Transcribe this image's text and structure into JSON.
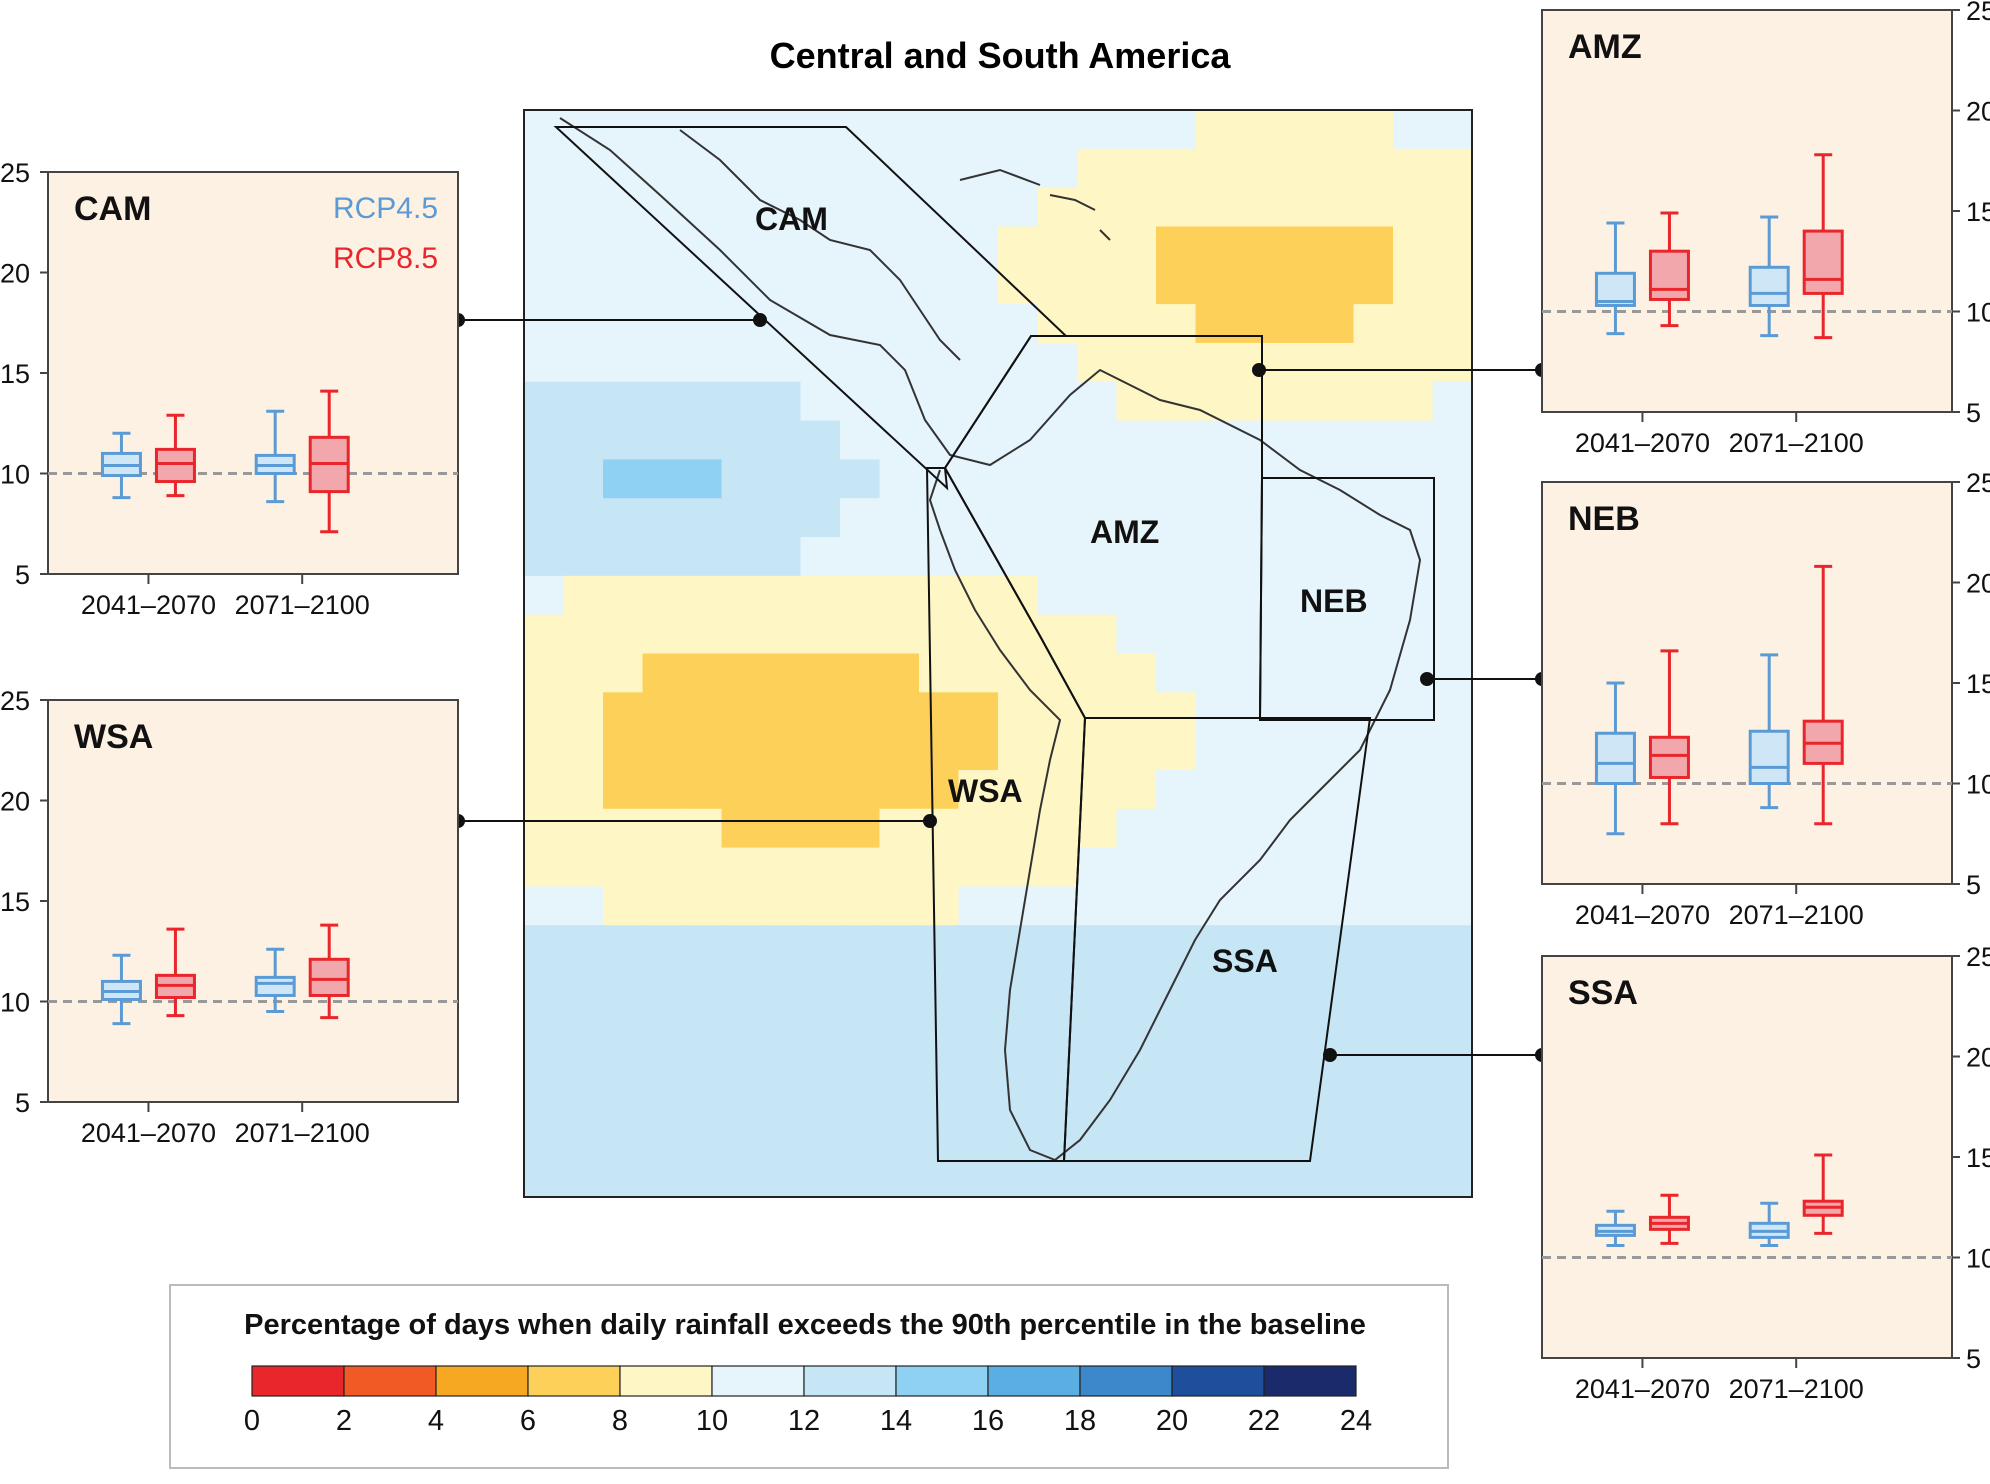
{
  "title": "Central and South America",
  "legend_title": "Percentage of days when daily rainfall exceeds the 90th percentile in the baseline",
  "map_labels": [
    "CAM",
    "AMZ",
    "NEB",
    "WSA",
    "SSA"
  ],
  "colors": {
    "rcp45": "#5b9bd5",
    "rcp45_fill": "#cfe6f7",
    "rcp85": "#e8262b",
    "rcp85_fill": "#f2a7ad",
    "panel_bg": "#fdf1e3",
    "baseline": "#999999"
  },
  "colorbar": {
    "ticks": [
      "0",
      "2",
      "4",
      "6",
      "8",
      "10",
      "12",
      "14",
      "16",
      "18",
      "20",
      "22",
      "24"
    ],
    "colors": [
      "#e8262b",
      "#f15a24",
      "#f7a823",
      "#fdd159",
      "#fef6c4",
      "#e6f4fb",
      "#c6e5f5",
      "#8fd1f2",
      "#5aaee2",
      "#3d87cb",
      "#1f4e9c",
      "#1b2a6b"
    ]
  },
  "chart_data": [
    {
      "type": "box",
      "region": "CAM",
      "categories": [
        "2041–2070",
        "2071–2100"
      ],
      "ylim": [
        5,
        25
      ],
      "yticks": [
        "5",
        "10",
        "15",
        "20",
        "25"
      ],
      "baseline": 10,
      "legend": [
        "RCP4.5",
        "RCP8.5"
      ],
      "series": [
        {
          "name": "RCP4.5",
          "boxes": [
            {
              "min": 8.8,
              "q1": 9.9,
              "median": 10.4,
              "q3": 11.0,
              "max": 12.0
            },
            {
              "min": 8.6,
              "q1": 10.0,
              "median": 10.4,
              "q3": 10.9,
              "max": 13.1
            }
          ]
        },
        {
          "name": "RCP8.5",
          "boxes": [
            {
              "min": 8.9,
              "q1": 9.6,
              "median": 10.5,
              "q3": 11.2,
              "max": 12.9
            },
            {
              "min": 7.1,
              "q1": 9.1,
              "median": 10.5,
              "q3": 11.8,
              "max": 14.1
            }
          ]
        }
      ]
    },
    {
      "type": "box",
      "region": "WSA",
      "categories": [
        "2041–2070",
        "2071–2100"
      ],
      "ylim": [
        5,
        25
      ],
      "yticks": [
        "5",
        "10",
        "15",
        "20",
        "25"
      ],
      "baseline": 10,
      "series": [
        {
          "name": "RCP4.5",
          "boxes": [
            {
              "min": 8.9,
              "q1": 10.1,
              "median": 10.5,
              "q3": 11.0,
              "max": 12.3
            },
            {
              "min": 9.5,
              "q1": 10.3,
              "median": 10.9,
              "q3": 11.2,
              "max": 12.6
            }
          ]
        },
        {
          "name": "RCP8.5",
          "boxes": [
            {
              "min": 9.3,
              "q1": 10.2,
              "median": 10.8,
              "q3": 11.3,
              "max": 13.6
            },
            {
              "min": 9.2,
              "q1": 10.3,
              "median": 11.1,
              "q3": 12.1,
              "max": 13.8
            }
          ]
        }
      ]
    },
    {
      "type": "box",
      "region": "AMZ",
      "categories": [
        "2041–2070",
        "2071–2100"
      ],
      "ylim": [
        5,
        25
      ],
      "yticks": [
        "5",
        "10",
        "15",
        "20",
        "25"
      ],
      "baseline": 10,
      "series": [
        {
          "name": "RCP4.5",
          "boxes": [
            {
              "min": 8.9,
              "q1": 10.3,
              "median": 10.5,
              "q3": 11.9,
              "max": 14.4
            },
            {
              "min": 8.8,
              "q1": 10.3,
              "median": 10.9,
              "q3": 12.2,
              "max": 14.7
            }
          ]
        },
        {
          "name": "RCP8.5",
          "boxes": [
            {
              "min": 9.3,
              "q1": 10.6,
              "median": 11.1,
              "q3": 13.0,
              "max": 14.9
            },
            {
              "min": 8.7,
              "q1": 10.9,
              "median": 11.6,
              "q3": 14.0,
              "max": 17.8
            }
          ]
        }
      ]
    },
    {
      "type": "box",
      "region": "NEB",
      "categories": [
        "2041–2070",
        "2071–2100"
      ],
      "ylim": [
        5,
        25
      ],
      "yticks": [
        "5",
        "10",
        "15",
        "20",
        "25"
      ],
      "baseline": 10,
      "series": [
        {
          "name": "RCP4.5",
          "boxes": [
            {
              "min": 7.5,
              "q1": 10.0,
              "median": 11.0,
              "q3": 12.5,
              "max": 15.0
            },
            {
              "min": 8.8,
              "q1": 10.0,
              "median": 10.8,
              "q3": 12.6,
              "max": 16.4
            }
          ]
        },
        {
          "name": "RCP8.5",
          "boxes": [
            {
              "min": 8.0,
              "q1": 10.3,
              "median": 11.4,
              "q3": 12.3,
              "max": 16.6
            },
            {
              "min": 8.0,
              "q1": 11.0,
              "median": 12.0,
              "q3": 13.1,
              "max": 20.8
            }
          ]
        }
      ]
    },
    {
      "type": "box",
      "region": "SSA",
      "categories": [
        "2041–2070",
        "2071–2100"
      ],
      "ylim": [
        5,
        25
      ],
      "yticks": [
        "5",
        "10",
        "15",
        "20",
        "25"
      ],
      "baseline": 10,
      "series": [
        {
          "name": "RCP4.5",
          "boxes": [
            {
              "min": 10.6,
              "q1": 11.1,
              "median": 11.3,
              "q3": 11.6,
              "max": 12.3
            },
            {
              "min": 10.6,
              "q1": 11.0,
              "median": 11.3,
              "q3": 11.7,
              "max": 12.7
            }
          ]
        },
        {
          "name": "RCP8.5",
          "boxes": [
            {
              "min": 10.7,
              "q1": 11.4,
              "median": 11.7,
              "q3": 12.0,
              "max": 13.1
            },
            {
              "min": 11.2,
              "q1": 12.1,
              "median": 12.5,
              "q3": 12.8,
              "max": 15.1
            }
          ]
        }
      ]
    }
  ]
}
